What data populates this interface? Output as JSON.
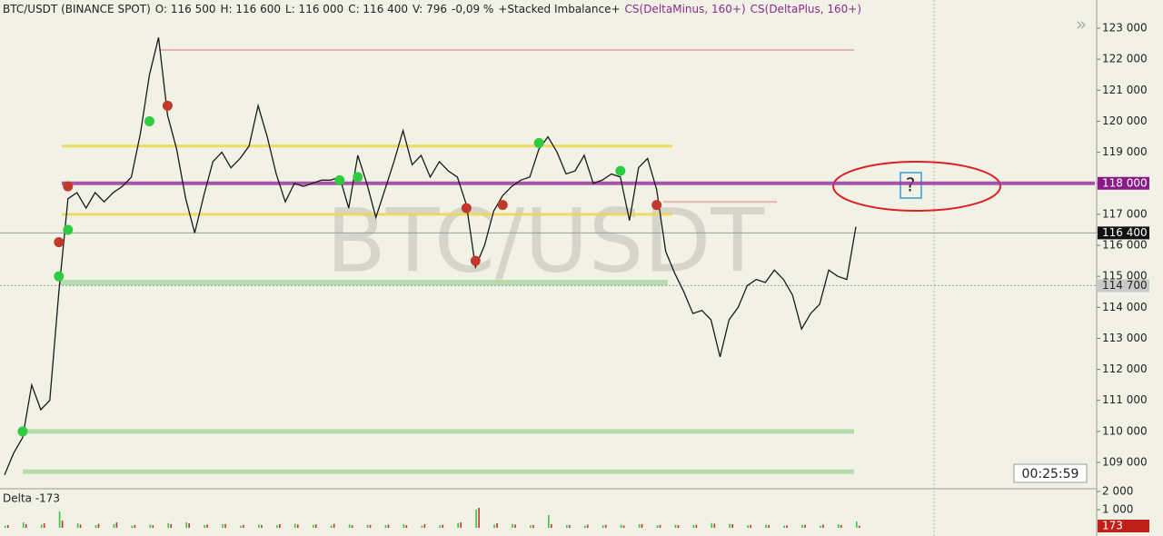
{
  "chart_data": {
    "type": "line",
    "watermark": "BTC/USDT",
    "header": [
      "BTC/USDT (BINANCE SPOT)",
      "O: 116 500",
      "H: 116 600",
      "L: 116 000",
      "C: 116 400",
      "V: 796",
      "-0,09 %",
      "+Stacked Imbalance+",
      "CS(DeltaMinus, 160+)",
      "CS(DeltaPlus, 160+)"
    ],
    "ylim": [
      108180,
      123910
    ],
    "yticks": [
      {
        "value": 109000,
        "label": "109 000"
      },
      {
        "value": 110000,
        "label": "110 000"
      },
      {
        "value": 111000,
        "label": "111 000"
      },
      {
        "value": 112000,
        "label": "112 000"
      },
      {
        "value": 113000,
        "label": "113 000"
      },
      {
        "value": 114000,
        "label": "114 000"
      },
      {
        "value": 115000,
        "label": "115 000"
      },
      {
        "value": 116000,
        "label": "116 000"
      },
      {
        "value": 117000,
        "label": "117 000"
      },
      {
        "value": 118000,
        "label": "118 000"
      },
      {
        "value": 119000,
        "label": "119 000"
      },
      {
        "value": 120000,
        "label": "120 000"
      },
      {
        "value": 121000,
        "label": "121 000"
      },
      {
        "value": 122000,
        "label": "122 000"
      },
      {
        "value": 123000,
        "label": "123 000"
      }
    ],
    "series": [
      {
        "color": "#1a1a1a",
        "values": [
          108600,
          109300,
          109800,
          111500,
          110700,
          111000,
          114500,
          117500,
          117700,
          117200,
          117700,
          117400,
          117700,
          117900,
          118200,
          119600,
          121500,
          122700,
          120200,
          119100,
          117500,
          116400,
          117600,
          118700,
          119000,
          118500,
          118800,
          119200,
          120500,
          119500,
          118300,
          117400,
          118000,
          117900,
          118000,
          118100,
          118100,
          118200,
          117200,
          118900,
          118000,
          116900,
          117800,
          118700,
          119700,
          118600,
          118900,
          118200,
          118700,
          118400,
          118200,
          117300,
          115300,
          116000,
          117100,
          117600,
          117900,
          118100,
          118200,
          119100,
          119500,
          119000,
          118300,
          118400,
          118900,
          118000,
          118100,
          118300,
          118200,
          116800,
          118500,
          118800,
          117800,
          115800,
          115100,
          114500,
          113800,
          113900,
          113600,
          112400,
          113600,
          114000,
          114700,
          114900,
          114800,
          115200,
          114900,
          114400,
          113300,
          113800,
          114100,
          115200,
          115000,
          114900,
          116600
        ]
      },
      {
        "color": "#2ecc40",
        "values": [
          null,
          null,
          110000,
          null,
          null,
          null,
          115000,
          116500,
          null,
          null,
          null,
          null,
          null,
          null,
          null,
          null,
          120000,
          null,
          null,
          null,
          null,
          null,
          null,
          null,
          null,
          null,
          null,
          null,
          null,
          null,
          null,
          null,
          null,
          null,
          null,
          null,
          null,
          118100,
          null,
          118200,
          null,
          null,
          null,
          null,
          null,
          null,
          null,
          null,
          null,
          null,
          null,
          null,
          null,
          null,
          null,
          null,
          null,
          null,
          null,
          119300,
          null,
          null,
          null,
          null,
          null,
          null,
          null,
          null,
          118400,
          null,
          null,
          null,
          null,
          null,
          null,
          null,
          null,
          null,
          null,
          null,
          null,
          null,
          null,
          null,
          null,
          null,
          null,
          null,
          null,
          null,
          null,
          null,
          null,
          null,
          null
        ]
      },
      {
        "color": "#c0392b",
        "values": [
          null,
          null,
          null,
          null,
          null,
          null,
          116100,
          117900,
          null,
          null,
          null,
          null,
          null,
          null,
          null,
          null,
          null,
          null,
          120500,
          null,
          null,
          null,
          null,
          null,
          null,
          null,
          null,
          null,
          null,
          null,
          null,
          null,
          null,
          null,
          null,
          null,
          null,
          null,
          null,
          null,
          null,
          null,
          null,
          null,
          null,
          null,
          null,
          null,
          null,
          null,
          null,
          117200,
          115500,
          null,
          null,
          117300,
          null,
          null,
          null,
          null,
          null,
          null,
          null,
          null,
          null,
          null,
          null,
          null,
          null,
          null,
          null,
          null,
          117300,
          null,
          null,
          null,
          null,
          null,
          null,
          null,
          null,
          null,
          null,
          null,
          null,
          null,
          null,
          null,
          null,
          null,
          null,
          null,
          null,
          null,
          null
        ]
      }
    ],
    "levels": [
      {
        "value": 122300,
        "color": "#e3aaa2"
      },
      {
        "value": 119200,
        "color": "#f0d84a"
      },
      {
        "value": 118000,
        "color": "#9b3a9b"
      },
      {
        "value": 117400,
        "color": "#e3aaa2"
      },
      {
        "value": 117000,
        "color": "#f0d84a"
      },
      {
        "value": 114800,
        "color": "#acd9a4"
      },
      {
        "value": 110000,
        "color": "#acd9a4"
      },
      {
        "value": 108700,
        "color": "#acd9a4"
      }
    ],
    "price_labels": [
      {
        "value": 118000,
        "label": "118 000",
        "color": "#8b1a89"
      },
      {
        "value": 116400,
        "label": "116 400",
        "color": "#111111"
      },
      {
        "value": 114700,
        "label": "114 700",
        "color": "#c9c9c9"
      }
    ],
    "timer": "00:25:59",
    "question": "?",
    "delta": {
      "title": "Delta -173",
      "badge": "173",
      "ylim": [
        -350,
        2200
      ],
      "yticks": [
        {
          "value": 2000,
          "label": "2 000"
        },
        {
          "value": 1000,
          "label": "1 000"
        }
      ],
      "series": [
        {
          "color": "#2ecc40",
          "values": [
            120,
            300,
            180,
            900,
            250,
            150,
            200,
            120,
            180,
            260,
            300,
            150,
            200,
            120,
            180,
            140,
            220,
            160,
            130,
            190,
            170,
            150,
            210,
            120,
            140,
            260,
            1000,
            180,
            200,
            150,
            700,
            160,
            120,
            140,
            180,
            200,
            130,
            170,
            150,
            260,
            220,
            140,
            180,
            130,
            160,
            120,
            200,
            350
          ]
        },
        {
          "color": "#d0302a",
          "values": [
            150,
            200,
            250,
            400,
            180,
            220,
            300,
            160,
            150,
            200,
            250,
            180,
            210,
            160,
            150,
            200,
            180,
            190,
            220,
            140,
            160,
            180,
            150,
            200,
            170,
            300,
            1100,
            250,
            180,
            160,
            200,
            150,
            180,
            170,
            130,
            210,
            160,
            150,
            170,
            230,
            200,
            160,
            150,
            140,
            170,
            180,
            150,
            120
          ]
        }
      ]
    }
  }
}
